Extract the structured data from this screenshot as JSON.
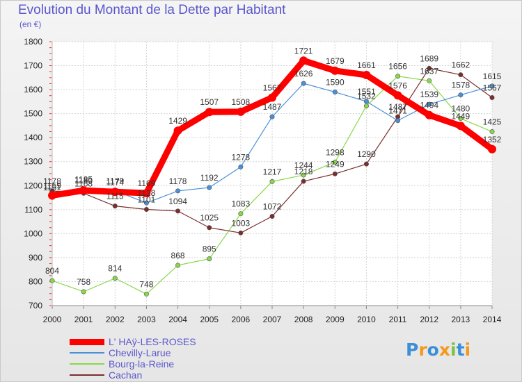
{
  "chart_data": {
    "type": "line",
    "title": "Evolution du Montant de la Dette par Habitant",
    "ylabel": "(en €)",
    "xlabel": "",
    "categories": [
      "2000",
      "2001",
      "2002",
      "2003",
      "2004",
      "2005",
      "2006",
      "2007",
      "2008",
      "2009",
      "2010",
      "2011",
      "2012",
      "2013",
      "2014"
    ],
    "ylim": [
      700,
      1800
    ],
    "yticks": [
      "700",
      "800",
      "900",
      "1000",
      "1100",
      "1200",
      "1300",
      "1400",
      "1500",
      "1600",
      "1700",
      "1800"
    ],
    "series": [
      {
        "name": "L' HAÿ-LES-ROSES",
        "color": "#ff0000",
        "values": [
          1159,
          1180,
          1174,
          1169,
          1429,
          1507,
          1508,
          1567,
          1721,
          1679,
          1661,
          1576,
          1494,
          1449,
          1352
        ],
        "labels": [
          "1159",
          "1180",
          "1174",
          "1169",
          "1429",
          "1507",
          "1508",
          "1567",
          "1721",
          "1679",
          "1661",
          "1576",
          "1494",
          "1449",
          "1352"
        ]
      },
      {
        "name": "Chevilly-Larue",
        "color": "#4a90d9",
        "values": [
          1151,
          1185,
          1179,
          1128,
          1178,
          1192,
          1278,
          1487,
          1626,
          1590,
          1551,
          1471,
          1539,
          1578,
          1615
        ],
        "labels": [
          "1151",
          "1185",
          "1179",
          "1128",
          "1178",
          "1192",
          "1278",
          "1487",
          "1626",
          "1590",
          "1551",
          "1471",
          "1539",
          "1578",
          "1615"
        ]
      },
      {
        "name": "Bourg-la-Reine",
        "color": "#88d84a",
        "values": [
          804,
          758,
          814,
          748,
          868,
          895,
          1083,
          1217,
          1244,
          1298,
          1532,
          1656,
          1637,
          1480,
          1425
        ],
        "labels": [
          "804",
          "758",
          "814",
          "748",
          "868",
          "895",
          "1083",
          "1217",
          "1244",
          "1298",
          "1532",
          "1656",
          "1637",
          "1480",
          "1425"
        ]
      },
      {
        "name": "Cachan",
        "color": "#7a2e2e",
        "values": [
          1178,
          1168,
          1115,
          1101,
          1094,
          1025,
          1003,
          1072,
          1218,
          1249,
          1290,
          1487,
          1689,
          1662,
          1567
        ],
        "labels": [
          "1178",
          "1168",
          "1115",
          "1101",
          "1094",
          "1025",
          "1003",
          "1072",
          "1218",
          "1249",
          "1290",
          "1487",
          "1689",
          "1662",
          "1567"
        ]
      }
    ],
    "legend": "bottom-left"
  },
  "logo": {
    "text": "Proxiti",
    "letters": [
      "P",
      "r",
      "o",
      "x",
      "i",
      "t",
      "i"
    ],
    "colors": [
      "#3a8fd8",
      "#f39a1e",
      "#3a8fd8",
      "#f39a1e",
      "#7cc242",
      "#3a8fd8",
      "#f39a1e"
    ]
  }
}
